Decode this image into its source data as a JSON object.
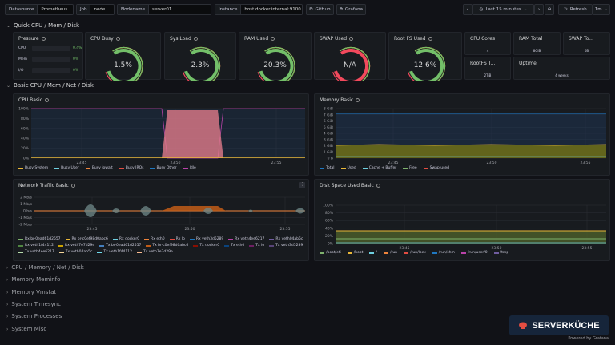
{
  "vars": [
    {
      "key": "Datasource",
      "value": "Prometheus"
    },
    {
      "key": "Job",
      "value": "node"
    },
    {
      "key": "Nodename",
      "value": "server01"
    },
    {
      "key": "Instance",
      "value": "host.docker.internal:9100"
    }
  ],
  "links": {
    "github": "GitHub",
    "grafana": "Grafana"
  },
  "time": {
    "range": "Last 15 minutes",
    "refresh": "Refresh",
    "interval": "1m"
  },
  "rows": {
    "quick": "Quick CPU / Mem / Disk",
    "basic": "Basic CPU / Mem / Net / Disk",
    "collapsed": [
      "CPU / Memory / Net / Disk",
      "Memory Meminfo",
      "Memory Vmstat",
      "System Timesync",
      "System Processes",
      "System Misc"
    ]
  },
  "pressure": {
    "title": "Pressure",
    "rows": [
      {
        "label": "CPU",
        "value": "0.4%"
      },
      {
        "label": "Mem",
        "value": "0%"
      },
      {
        "label": "I/O",
        "value": "0%"
      }
    ]
  },
  "gauges": [
    {
      "title": "CPU Busy",
      "value": "1.5%",
      "pct": 1.5,
      "color": "#73bf69"
    },
    {
      "title": "Sys Load",
      "value": "2.3%",
      "pct": 2.3,
      "color": "#73bf69"
    },
    {
      "title": "RAM Used",
      "value": "20.3%",
      "pct": 20.3,
      "color": "#73bf69"
    },
    {
      "title": "SWAP Used",
      "value": "N/A",
      "pct": 0,
      "color": "#f2495c"
    },
    {
      "title": "Root FS Used",
      "value": "12.6%",
      "pct": 12.6,
      "color": "#73bf69"
    }
  ],
  "stats": [
    {
      "title": "CPU Cores",
      "value": "4"
    },
    {
      "title": "RAM Total",
      "value": "8GiB"
    },
    {
      "title": "SWAP To...",
      "value": "0B"
    },
    {
      "title": "RootFS T...",
      "value": "2TiB"
    },
    {
      "title": "Uptime",
      "value": "4 weeks"
    }
  ],
  "cpu_chart": {
    "title": "CPU Basic",
    "yticks": [
      "100%",
      "80%",
      "60%",
      "40%",
      "20%",
      "0%"
    ],
    "xticks": [
      "23:45",
      "23:50",
      "23:55"
    ],
    "legend": [
      {
        "name": "Busy System",
        "color": "#eab839"
      },
      {
        "name": "Busy User",
        "color": "#6ed0e0"
      },
      {
        "name": "Busy Iowait",
        "color": "#ef843c"
      },
      {
        "name": "Busy IRQs",
        "color": "#e24d42"
      },
      {
        "name": "Busy Other",
        "color": "#1f78c1"
      },
      {
        "name": "Idle",
        "color": "#ba43a9"
      }
    ]
  },
  "mem_chart": {
    "title": "Memory Basic",
    "yticks": [
      "8 GiB",
      "7 GiB",
      "6 GiB",
      "5 GiB",
      "4 GiB",
      "3 GiB",
      "2 GiB",
      "1 GiB",
      "0 B"
    ],
    "xticks": [
      "23:45",
      "23:50",
      "23:55"
    ],
    "legend": [
      {
        "name": "Total",
        "color": "#1f78c1"
      },
      {
        "name": "Used",
        "color": "#eab839"
      },
      {
        "name": "Cache + Buffer",
        "color": "#6ed0e0"
      },
      {
        "name": "Free",
        "color": "#7eb26d"
      },
      {
        "name": "Swap used",
        "color": "#e24d42"
      }
    ]
  },
  "net_chart": {
    "title": "Network Traffic Basic",
    "yticks": [
      "2 Mb/s",
      "1 Mb/s",
      "0 b/s",
      "-1 Mb/s",
      "-2 Mb/s"
    ],
    "xticks": [
      "23:45",
      "23:50",
      "23:55"
    ],
    "legend": [
      {
        "name": "Rx br-0ead61d2557",
        "color": "#7eb26d"
      },
      {
        "name": "Rx br-c0ef98d0abc6",
        "color": "#eab839"
      },
      {
        "name": "Rx docker0",
        "color": "#6ed0e0"
      },
      {
        "name": "Rx eth0",
        "color": "#ef843c"
      },
      {
        "name": "Rx lo",
        "color": "#e24d42"
      },
      {
        "name": "Rx veth3d5289",
        "color": "#1f78c1"
      },
      {
        "name": "Rx veth4ee6217",
        "color": "#ba43a9"
      },
      {
        "name": "Rx veth04ab5c",
        "color": "#705da0"
      },
      {
        "name": "Rx veth1f44112",
        "color": "#508642"
      },
      {
        "name": "Rx veth7e7d29e",
        "color": "#cca300"
      },
      {
        "name": "Tx br-0ead61d2557",
        "color": "#447ebc"
      },
      {
        "name": "Tx br-c0ef98d0abc6",
        "color": "#c15c17"
      },
      {
        "name": "Tx docker0",
        "color": "#890f02"
      },
      {
        "name": "Tx eth0",
        "color": "#0a437c"
      },
      {
        "name": "Tx lo",
        "color": "#6d1f62"
      },
      {
        "name": "Tx veth3d5289",
        "color": "#584477"
      },
      {
        "name": "Tx veth4ee6217",
        "color": "#b7dbab"
      },
      {
        "name": "Tx veth04ab5c",
        "color": "#f4d598"
      },
      {
        "name": "Tx veth1f44112",
        "color": "#70dbed"
      },
      {
        "name": "Tx veth7e7d29e",
        "color": "#f9ba8f"
      }
    ]
  },
  "disk_chart": {
    "title": "Disk Space Used Basic",
    "yticks": [
      "100%",
      "80%",
      "60%",
      "40%",
      "20%",
      "0%"
    ],
    "xticks": [
      "23:45",
      "23:50",
      "23:55"
    ],
    "legend": [
      {
        "name": "/boot/efi",
        "color": "#7eb26d"
      },
      {
        "name": "/boot",
        "color": "#eab839"
      },
      {
        "name": "/",
        "color": "#6ed0e0"
      },
      {
        "name": "/run",
        "color": "#ef843c"
      },
      {
        "name": "/run/lock",
        "color": "#e24d42"
      },
      {
        "name": "/run/shm",
        "color": "#1f78c1"
      },
      {
        "name": "/run/user/0",
        "color": "#ba43a9"
      },
      {
        "name": "/tmp",
        "color": "#705da0"
      }
    ]
  },
  "brand": "SERVERKÜCHE",
  "powered": "Powered by Grafana"
}
